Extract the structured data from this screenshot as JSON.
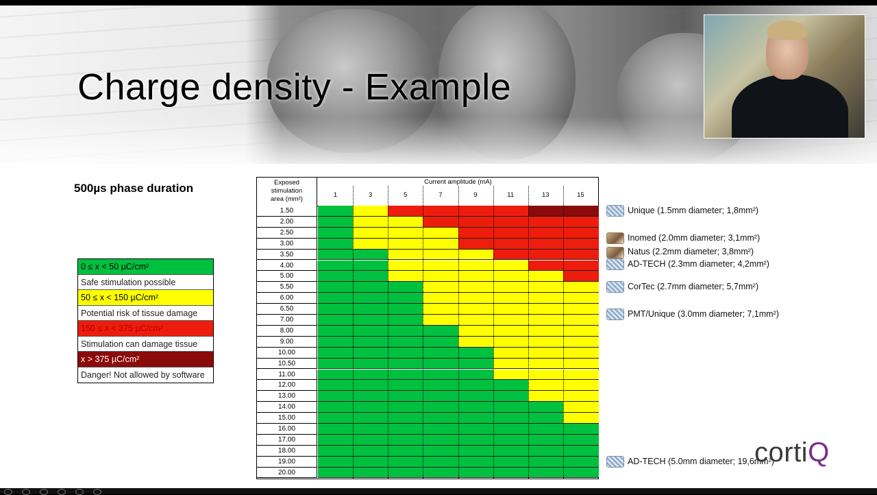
{
  "slide": {
    "title": "Charge density - Example",
    "subtitle": "500µs phase duration"
  },
  "legend": [
    {
      "text": "0 ≤ x < 50 µC/cm²",
      "color": "#00c040",
      "text_color": "#000000"
    },
    {
      "text": "Safe stimulation possible",
      "color": "#ffffff",
      "text_color": "#222222"
    },
    {
      "text": "50 ≤ x < 150 µC/cm²",
      "color": "#ffff00",
      "text_color": "#000000"
    },
    {
      "text": "Potential risk of tissue damage",
      "color": "#ffffff",
      "text_color": "#222222"
    },
    {
      "text": "150 ≤ x < 375 µC/cm²",
      "color": "#ee1c0c",
      "text_color": "#b30000"
    },
    {
      "text": "Stimulation can damage tissue",
      "color": "#ffffff",
      "text_color": "#222222"
    },
    {
      "text": "x > 375 µC/cm²",
      "color": "#8b0a0a",
      "text_color": "#ffffff"
    },
    {
      "text": "Danger! Not allowed by software",
      "color": "#ffffff",
      "text_color": "#222222"
    }
  ],
  "table": {
    "area_header": [
      "Exposed",
      "stimulation",
      "area (mm²)"
    ],
    "current_header": "Current amplitude (mA)",
    "amplitude_labels": [
      "1",
      "3",
      "5",
      "7",
      "9",
      "11",
      "13",
      "15"
    ],
    "colors": {
      "G": "#00c040",
      "Y": "#ffff00",
      "R": "#ee1c0c",
      "D": "#8b0a0a"
    },
    "rows": [
      {
        "area": "1.50",
        "levels": "GGYYRRRRRRRRDDDD"
      },
      {
        "area": "2.00",
        "levels": "GGYYYYRRRRRRRRRR"
      },
      {
        "area": "2.50",
        "levels": "GGYYYYYYRRRRRRRR"
      },
      {
        "area": "3.00",
        "levels": "GGYYYYYYRRRRRRRR"
      },
      {
        "area": "3.50",
        "levels": "GGGGYYYYYYRRRRRR"
      },
      {
        "area": "4.00",
        "levels": "GGGGYYYYYYYYRRRR"
      },
      {
        "area": "5.00",
        "levels": "GGGGYYYYYYYYYYRR"
      },
      {
        "area": "5.50",
        "levels": "GGGGGGYYYYYYYYYY"
      },
      {
        "area": "6.00",
        "levels": "GGGGGGYYYYYYYYYY"
      },
      {
        "area": "6.50",
        "levels": "GGGGGGYYYYYYYYYY"
      },
      {
        "area": "7.00",
        "levels": "GGGGGGYYYYYYYYYY"
      },
      {
        "area": "8.00",
        "levels": "GGGGGGGGYYYYYYYY"
      },
      {
        "area": "9.00",
        "levels": "GGGGGGGGYYYYYYYY"
      },
      {
        "area": "10.00",
        "levels": "GGGGGGGGGGYYYYYY"
      },
      {
        "area": "10.50",
        "levels": "GGGGGGGGGGYYYYYY"
      },
      {
        "area": "11.00",
        "levels": "GGGGGGGGGGYYYYYY"
      },
      {
        "area": "12.00",
        "levels": "GGGGGGGGGGGGYYYY"
      },
      {
        "area": "13.00",
        "levels": "GGGGGGGGGGGGYYYY"
      },
      {
        "area": "14.00",
        "levels": "GGGGGGGGGGGGGGYY"
      },
      {
        "area": "15.00",
        "levels": "GGGGGGGGGGGGGGYY"
      },
      {
        "area": "16.00",
        "levels": "GGGGGGGGGGGGGGGG"
      },
      {
        "area": "17.00",
        "levels": "GGGGGGGGGGGGGGGG"
      },
      {
        "area": "18.00",
        "levels": "GGGGGGGGGGGGGGGG"
      },
      {
        "area": "19.00",
        "levels": "GGGGGGGGGGGGGGGG"
      },
      {
        "area": "20.00",
        "levels": "GGGGGGGGGGGGGGGG"
      }
    ]
  },
  "electrodes": [
    {
      "text": "Unique (1.5mm diameter; 1,8mm²)",
      "icon": "grid-electrode-icon",
      "row": 1
    },
    {
      "text": "Inomed (2.0mm diameter; 3,1mm²)",
      "icon": "brush-electrode-icon",
      "row": 3.5
    },
    {
      "text": "Natus (2.2mm diameter;  3,8mm²)",
      "icon": "brush-electrode-icon",
      "row": 4.8
    },
    {
      "text": "AD-TECH (2.3mm diameter; 4,2mm²)",
      "icon": "grid-electrode-icon",
      "row": 5.9
    },
    {
      "text": "CorTec (2.7mm diameter; 5,7mm²)",
      "icon": "grid-electrode-icon",
      "row": 8
    },
    {
      "text": "PMT/Unique (3.0mm diameter; 7,1mm²)",
      "icon": "grid-electrode-icon",
      "row": 10.5
    },
    {
      "text": "AD-TECH (5.0mm diameter; 19,6mm²)",
      "icon": "grid-electrode-icon",
      "row": 24
    }
  ],
  "logo": {
    "main": "corti",
    "accent": "Q"
  }
}
